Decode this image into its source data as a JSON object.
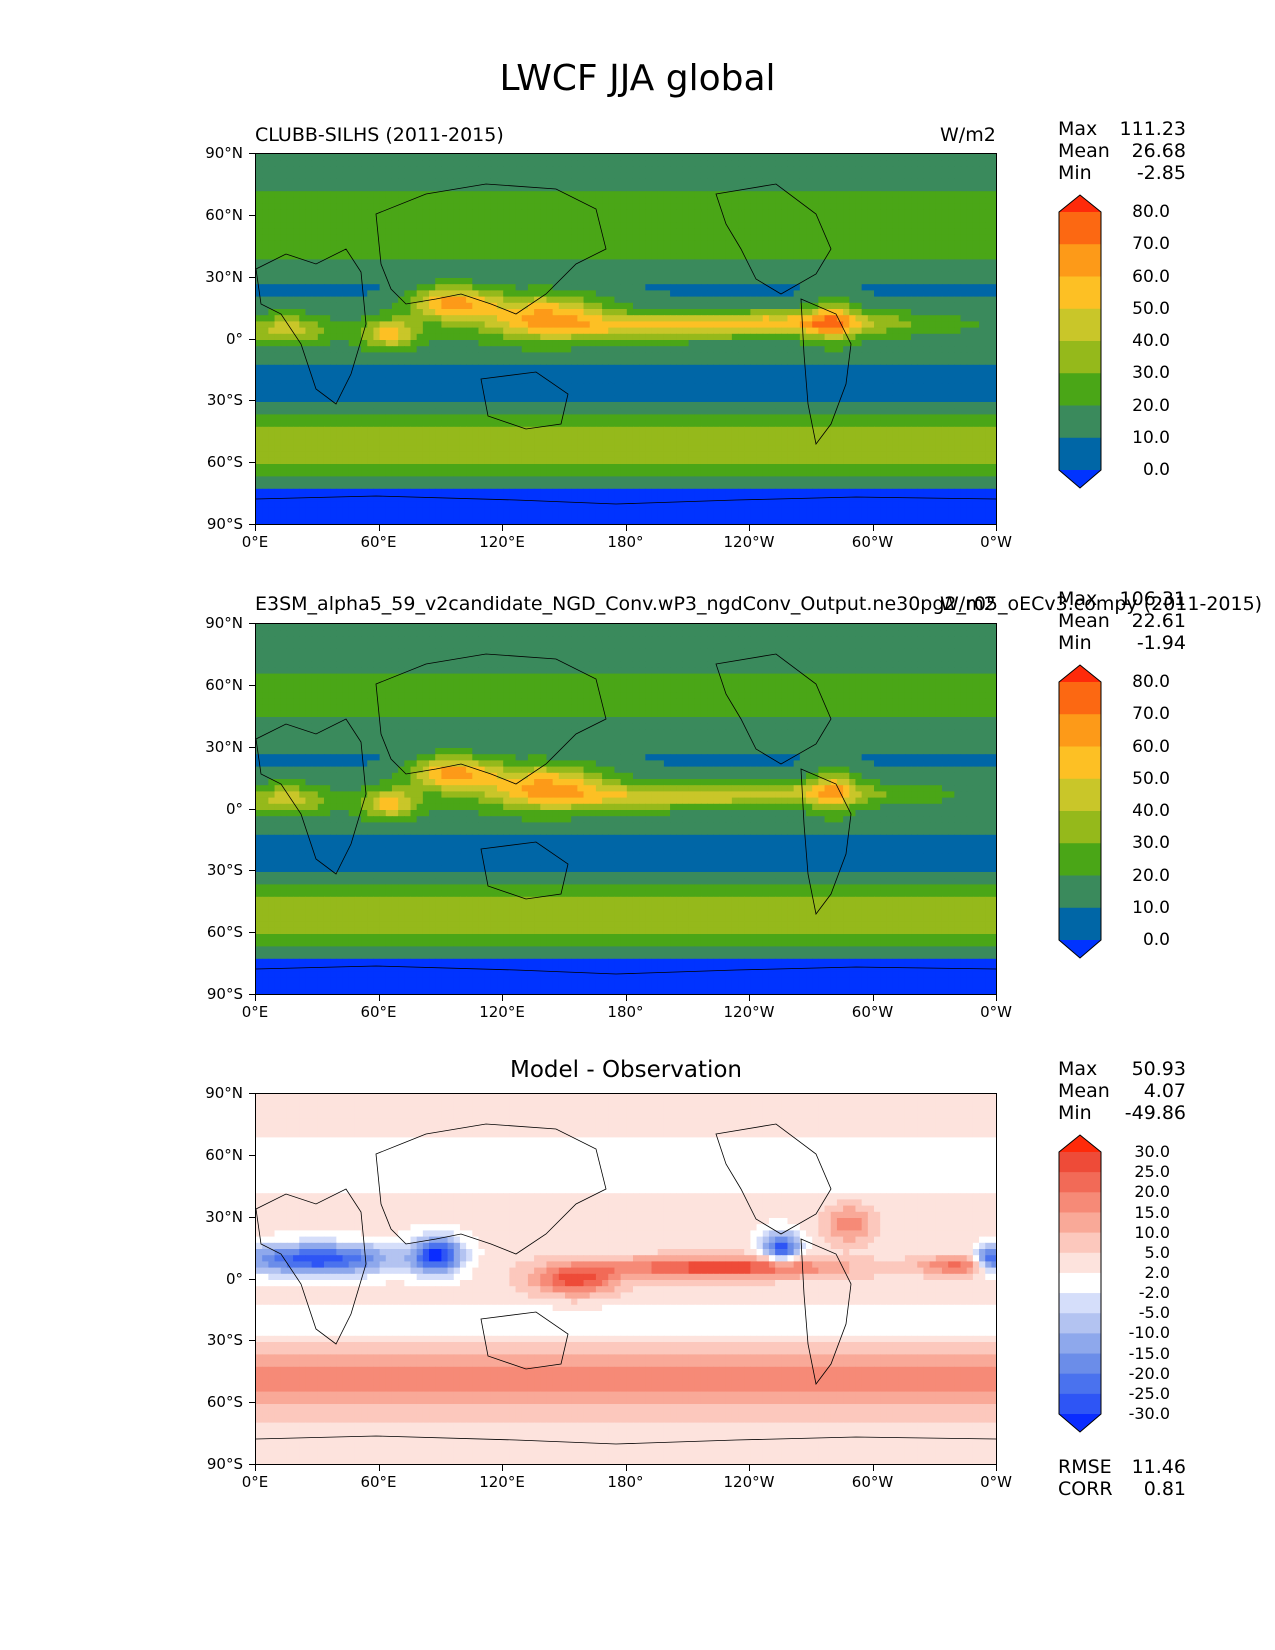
{
  "figure_title": "LWCF JJA global",
  "lat_ticks": [
    "90°N",
    "60°N",
    "30°N",
    "0°",
    "30°S",
    "60°S",
    "90°S"
  ],
  "lon_ticks": [
    "0°E",
    "60°E",
    "120°E",
    "180°",
    "120°W",
    "60°W",
    "0°W"
  ],
  "panels": [
    {
      "left_title": "CLUBB-SILHS (2011-2015)",
      "right_title": "W/m2",
      "center_title": "",
      "stats": [
        {
          "label": "Max",
          "value": "111.23"
        },
        {
          "label": "Mean",
          "value": "26.68"
        },
        {
          "label": "Min",
          "value": "-2.85"
        }
      ],
      "colorbar": {
        "colors": [
          "#0033ff",
          "#0066a6",
          "#3a8a5c",
          "#4aa617",
          "#95b91b",
          "#c9c629",
          "#fdc024",
          "#fd9a18",
          "#fc6812",
          "#fe2a0a"
        ],
        "labels": [
          "0.0",
          "10.0",
          "20.0",
          "30.0",
          "40.0",
          "50.0",
          "60.0",
          "70.0",
          "80.0"
        ]
      }
    },
    {
      "left_title": "E3SM_alpha5_59_v2candidate_NGD_Conv.wP3_ngdConv_Output.ne30pg2_r05_oECv3.compy (2011-2015)",
      "right_title": "W/m2",
      "center_title": "",
      "stats": [
        {
          "label": "Max",
          "value": "106.31"
        },
        {
          "label": "Mean",
          "value": "22.61"
        },
        {
          "label": "Min",
          "value": "-1.94"
        }
      ],
      "colorbar": {
        "colors": [
          "#0033ff",
          "#0066a6",
          "#3a8a5c",
          "#4aa617",
          "#95b91b",
          "#c9c629",
          "#fdc024",
          "#fd9a18",
          "#fc6812",
          "#fe2a0a"
        ],
        "labels": [
          "0.0",
          "10.0",
          "20.0",
          "30.0",
          "40.0",
          "50.0",
          "60.0",
          "70.0",
          "80.0"
        ]
      }
    },
    {
      "left_title": "",
      "right_title": "",
      "center_title": "Model - Observation",
      "stats": [
        {
          "label": "Max",
          "value": "50.93"
        },
        {
          "label": "Mean",
          "value": "4.07"
        },
        {
          "label": "Min",
          "value": "-49.86"
        }
      ],
      "metrics": [
        {
          "label": "RMSE",
          "value": "11.46"
        },
        {
          "label": "CORR",
          "value": "0.81"
        }
      ],
      "colorbar": {
        "colors": [
          "#0a2cff",
          "#2e55f5",
          "#4a72ee",
          "#6b8de9",
          "#8ea8ec",
          "#b3c3f1",
          "#d5defa",
          "#ffffff",
          "#fde3dd",
          "#fcc8bd",
          "#f9a998",
          "#f68a77",
          "#f26a57",
          "#ee4b38",
          "#fe2a0a"
        ],
        "labels": [
          "-30.0",
          "-25.0",
          "-20.0",
          "-15.0",
          "-10.0",
          "-5.0",
          "-2.0",
          "2.0",
          "5.0",
          "10.0",
          "15.0",
          "20.0",
          "25.0",
          "30.0"
        ]
      }
    }
  ]
}
